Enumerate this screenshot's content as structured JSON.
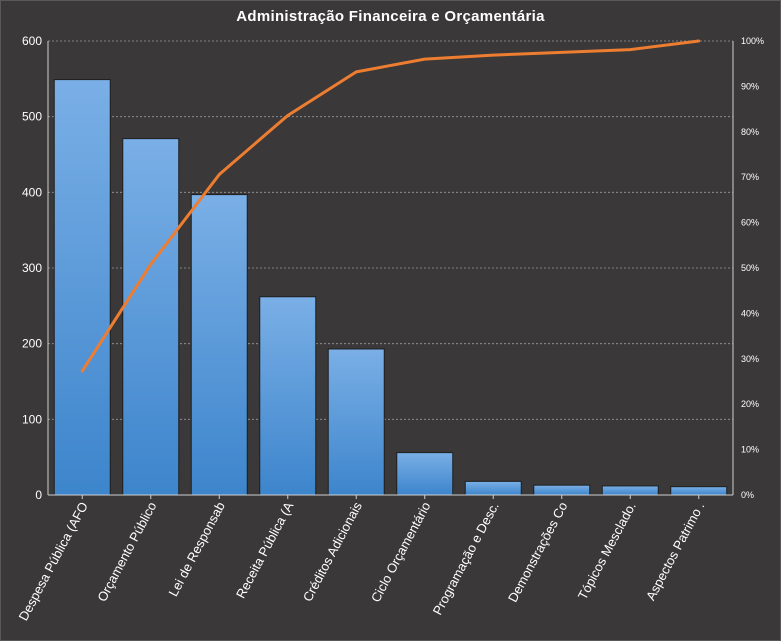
{
  "chart_data": {
    "type": "bar",
    "title": "Administração  Financeira  e Orçamentária",
    "categories": [
      "Despesa Pública (AFO",
      "Orçamento Público",
      "Lei de Responsab",
      "Receita Pública (A",
      "Créditos Adicionais",
      "Ciclo Orçamentário",
      "Programação e Desc.",
      "Demonstrações Co",
      "Tópicos Mesclado.",
      "Aspectos Patrimo ."
    ],
    "series": [
      {
        "values": [
          549,
          471,
          397,
          262,
          193,
          56,
          18,
          13,
          12,
          11
        ]
      },
      {
        "values": [
          27.3,
          50.8,
          70.6,
          83.6,
          93.2,
          96.0,
          96.9,
          97.5,
          98.1,
          100
        ]
      }
    ],
    "ylim": [
      0,
      600
    ],
    "y2lim": [
      0,
      100
    ],
    "yticks": [
      "0",
      "100",
      "200",
      "300",
      "400",
      "500",
      "600"
    ],
    "y2ticks": [
      "0%",
      "10%",
      "20%",
      "30%",
      "40%",
      "50%",
      "60%",
      "70%",
      "80%",
      "90%",
      "100%"
    ],
    "grid": true,
    "legend": "none",
    "colors": {
      "bar_top": "#7aafe6",
      "bar_bottom": "#3d85cc",
      "line": "#ed7d31",
      "grid": "#9a9a9a",
      "text": "#ffffff",
      "background": "#3a3838"
    }
  }
}
